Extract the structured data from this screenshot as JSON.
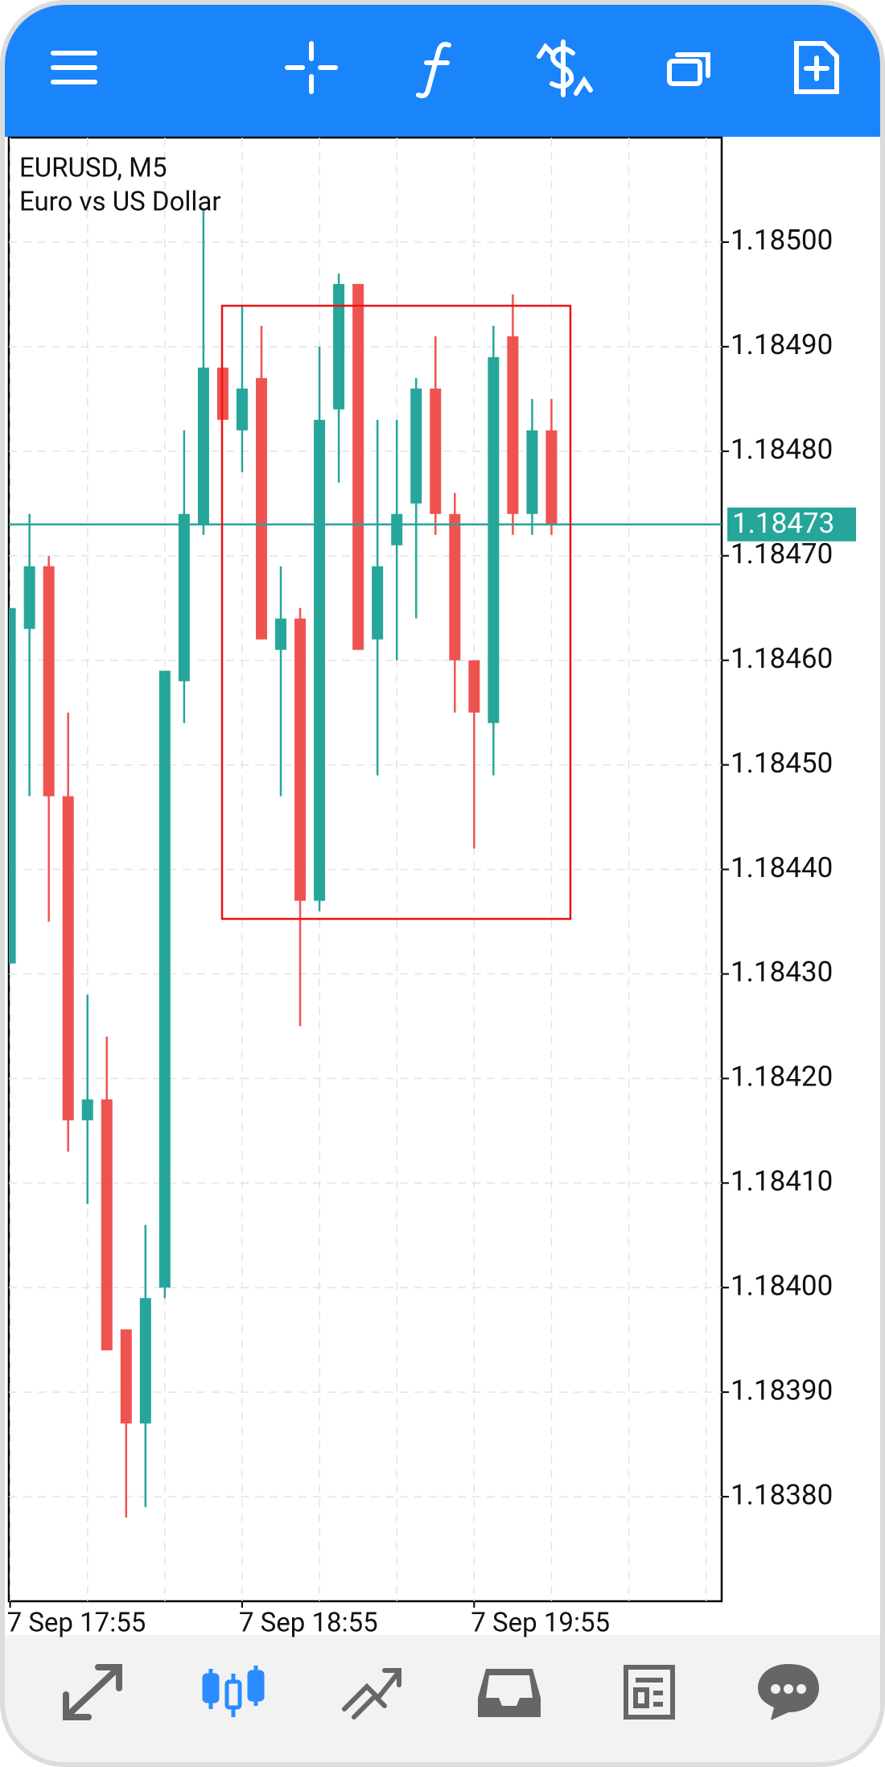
{
  "chart_data": {
    "type": "candlestick",
    "title": "EURUSD, M5",
    "subtitle": "Euro vs US Dollar",
    "categories": [
      "7 Sep 17:55",
      null,
      null,
      null,
      null,
      null,
      null,
      null,
      null,
      null,
      null,
      null,
      "7 Sep 18:55",
      null,
      null,
      null,
      null,
      null,
      null,
      null,
      null,
      null,
      null,
      null,
      "7 Sep 19:55",
      null,
      null,
      null,
      null
    ],
    "open": [
      1.18431,
      1.18463,
      1.18469,
      1.18447,
      1.18416,
      1.18418,
      1.18396,
      1.18387,
      1.184,
      1.18458,
      1.18473,
      1.18488,
      1.18482,
      1.18487,
      1.18461,
      1.18464,
      1.18437,
      1.18484,
      1.18496,
      1.18462,
      1.18471,
      1.18475,
      1.18486,
      1.18474,
      1.1846,
      1.18454,
      1.18491,
      1.18474,
      1.18482
    ],
    "high": [
      1.18465,
      1.18474,
      1.1847,
      1.18455,
      1.18428,
      1.18424,
      1.18396,
      1.18406,
      1.18459,
      1.18482,
      1.18503,
      1.18488,
      1.18494,
      1.18492,
      1.18469,
      1.18465,
      1.1849,
      1.18497,
      1.18496,
      1.18483,
      1.18483,
      1.18487,
      1.18491,
      1.18476,
      1.1846,
      1.18492,
      1.18495,
      1.18485,
      1.18485
    ],
    "low": [
      1.18431,
      1.18447,
      1.18435,
      1.18413,
      1.18408,
      1.18394,
      1.18378,
      1.18379,
      1.18399,
      1.18454,
      1.18472,
      1.18483,
      1.18478,
      1.18462,
      1.18447,
      1.18425,
      1.18436,
      1.18477,
      1.18461,
      1.18449,
      1.1846,
      1.18464,
      1.18472,
      1.18455,
      1.18442,
      1.18449,
      1.18472,
      1.18472,
      1.18472
    ],
    "close": [
      1.18465,
      1.18469,
      1.18447,
      1.18416,
      1.18418,
      1.18394,
      1.18387,
      1.18399,
      1.18459,
      1.18474,
      1.18488,
      1.18483,
      1.18486,
      1.18462,
      1.18464,
      1.18437,
      1.18483,
      1.18496,
      1.18461,
      1.18469,
      1.18474,
      1.18486,
      1.18474,
      1.1846,
      1.18455,
      1.18489,
      1.18474,
      1.18482,
      1.18473
    ],
    "up_color": "#26a69a",
    "down_color": "#ef5350",
    "last_price": 1.18473,
    "ylim": [
      1.1837,
      1.1851
    ],
    "yticks": [
      {
        "value": 1.185,
        "label": "1.18500"
      },
      {
        "value": 1.1849,
        "label": "1.18490"
      },
      {
        "value": 1.1848,
        "label": "1.18480"
      },
      {
        "value": 1.1847,
        "label": "1.18470"
      },
      {
        "value": 1.1846,
        "label": "1.18460"
      },
      {
        "value": 1.1845,
        "label": "1.18450"
      },
      {
        "value": 1.1844,
        "label": "1.18440"
      },
      {
        "value": 1.1843,
        "label": "1.18430"
      },
      {
        "value": 1.1842,
        "label": "1.18420"
      },
      {
        "value": 1.1841,
        "label": "1.18410"
      },
      {
        "value": 1.184,
        "label": "1.18400"
      },
      {
        "value": 1.1839,
        "label": "1.18390"
      },
      {
        "value": 1.1838,
        "label": "1.18380"
      }
    ],
    "grid": true
  }
}
